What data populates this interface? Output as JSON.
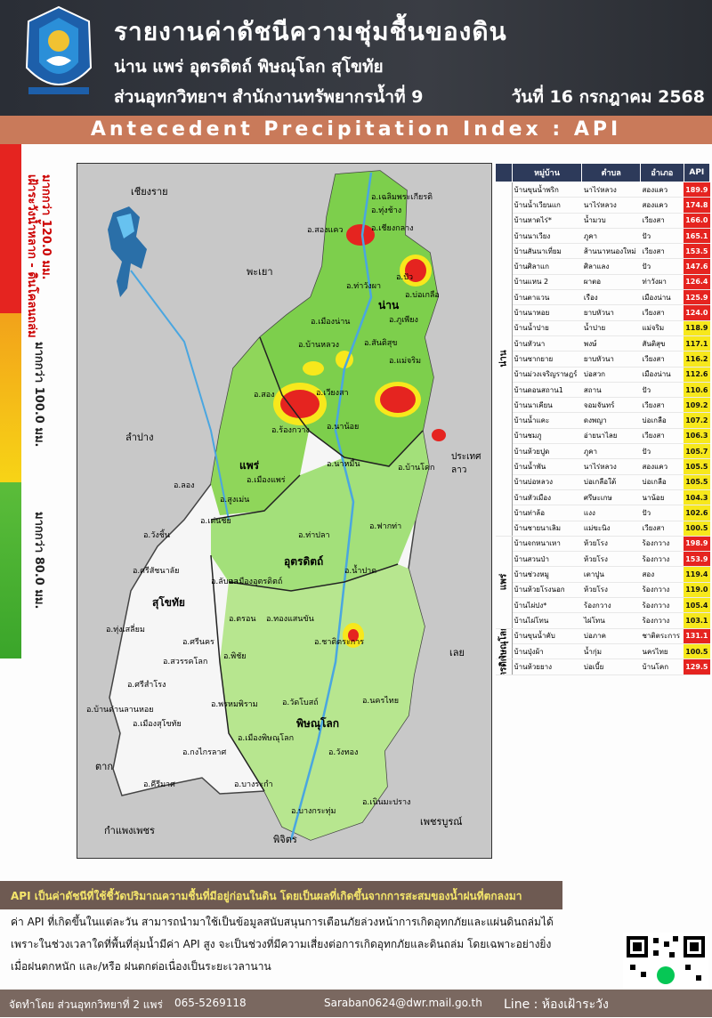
{
  "header": {
    "title": "รายงานค่าดัชนีความชุ่มชื้นของดิน",
    "provinces": "น่าน แพร่ อุตรดิตถ์ พิษณุโลก สุโขทัย",
    "office": "ส่วนอุทกวิทยาฯ สำนักงานทรัพยากรน้ำที่ 9",
    "date": "วันที่ 16 กรกฎาคม 2568"
  },
  "banner": "Antecedent Precipitation Index : API",
  "legend": {
    "levels": [
      {
        "color": "#e52420",
        "text": "มากกว่า 120.0 มม.",
        "sub": "เฝ้าระวังน้ำหลาก - ดินโคลนถล่ม"
      },
      {
        "color": "#f7d416",
        "text": "มากกว่า 100.0 มม."
      },
      {
        "color": "#5bbd3a",
        "text": "มากกว่า 80.0 มม."
      }
    ]
  },
  "map": {
    "neighbors": [
      "เชียงราย",
      "พะเยา",
      "ลำปาง",
      "ตาก",
      "กำแพงเพชร",
      "พิจิตร",
      "เพชรบูรณ์",
      "เลย",
      "ประเทศลาว"
    ],
    "provinces": [
      "น่าน",
      "แพร่",
      "อุตรดิตถ์",
      "สุโขทัย",
      "พิษณุโลก"
    ],
    "districts": [
      "อ.เฉลิมพระเกียรติ",
      "อ.ทุ่งช้าง",
      "อ.สองแคว",
      "อ.เชียงกลาง",
      "อ.ปัว",
      "อ.ท่าวังผา",
      "อ.บ่อเกลือ",
      "อ.เมืองน่าน",
      "อ.ภูเพียง",
      "อ.สันติสุข",
      "อ.บ้านหลวง",
      "อ.แม่จริม",
      "อ.เวียงสา",
      "อ.นาน้อย",
      "อ.นาหมื่น",
      "อ.บ้านโคก",
      "อ.สอง",
      "อ.ร้องกวาง",
      "อ.เมืองแพร่",
      "อ.สูงเม่น",
      "อ.ลอง",
      "อ.เด่นชัย",
      "อ.วังชิ้น",
      "อ.ฟากท่า",
      "อ.ท่าปลา",
      "อ.น้ำปาด",
      "อ.ลับแล",
      "อ.เมืองอุตรดิตถ์",
      "อ.ตรอน",
      "อ.ทองแสนขัน",
      "อ.พิชัย",
      "อ.ชาติตระการ",
      "อ.ศรีสัชนาลัย",
      "อ.ศรีนคร",
      "อ.ทุ่งเสลี่ยม",
      "อ.สวรรคโลก",
      "อ.ศรีสำโรง",
      "อ.บ้านด่านลานหอย",
      "อ.เมืองสุโขทัย",
      "อ.กงไกรลาศ",
      "อ.คีรีมาศ",
      "อ.นครไทย",
      "อ.วัดโบสถ์",
      "อ.พรหมพิราม",
      "อ.วังทอง",
      "อ.เมืองพิษณุโลก",
      "อ.บางระกำ",
      "อ.บางกระทุ่ม",
      "อ.เนินมะปราง"
    ]
  },
  "table": {
    "headers": [
      "หมู่บ้าน",
      "ตำบล",
      "อำเภอ",
      "API"
    ],
    "groups": [
      {
        "province": "น่าน",
        "rows": [
          [
            "บ้านขุนน้ำพริก",
            "นาไร่หลวง",
            "สองแคว",
            "189.9"
          ],
          [
            "บ้านน้ำเวียนแก",
            "นาไร่หลวง",
            "สองแคว",
            "174.8"
          ],
          [
            "บ้านหาดไร่*",
            "น้ำมวบ",
            "เวียงสา",
            "166.0"
          ],
          [
            "บ้านนาเวียง",
            "ภูคา",
            "ปัว",
            "165.1"
          ],
          [
            "บ้านสันนาเที่ยม",
            "ส้านนาหนองใหม่",
            "เวียงสา",
            "153.5"
          ],
          [
            "บ้านศิลาแก",
            "ศิลาแลง",
            "ปัว",
            "147.6"
          ],
          [
            "บ้านแหน 2",
            "ผาตอ",
            "ท่าวังผา",
            "126.4"
          ],
          [
            "บ้านตาแวน",
            "เรือง",
            "เมืองน่าน",
            "125.9"
          ],
          [
            "บ้านนาหอย",
            "ยาบหัวนา",
            "เวียงสา",
            "124.0"
          ],
          [
            "บ้านน้ำปาย",
            "น้ำปาย",
            "แม่จริม",
            "118.9"
          ],
          [
            "บ้านหัวนา",
            "พงษ์",
            "สันติสุข",
            "117.1"
          ],
          [
            "บ้านซากยาย",
            "ยาบหัวนา",
            "เวียงสา",
            "116.2"
          ],
          [
            "บ้านม่วงเจริญราษฎร์",
            "บ่อสวก",
            "เมืองน่าน",
            "112.6"
          ],
          [
            "บ้านดอนสถาน1",
            "สถาน",
            "ปัว",
            "110.6"
          ],
          [
            "บ้านนาเคียน",
            "จอมจันทร์",
            "เวียงสา",
            "109.2"
          ],
          [
            "บ้านน้ำแคะ",
            "ดงพญา",
            "บ่อเกลือ",
            "107.2"
          ],
          [
            "บ้านชมภู",
            "อ่ายนาไลย",
            "เวียงสา",
            "106.3"
          ],
          [
            "บ้านห้วยปูด",
            "ภูคา",
            "ปัว",
            "105.7"
          ],
          [
            "บ้านน้ำพัน",
            "นาไร่หลวง",
            "สองแคว",
            "105.5"
          ],
          [
            "บ้านบ่อหลวง",
            "บ่อเกลือใต้",
            "บ่อเกลือ",
            "105.5"
          ],
          [
            "บ้านหัวเมือง",
            "ศรีษะเกษ",
            "นาน้อย",
            "104.3"
          ],
          [
            "บ้านท่าล้อ",
            "แงง",
            "ปัว",
            "102.6"
          ],
          [
            "บ้านชายนาเลิม",
            "แม่ขะนิง",
            "เวียงสา",
            "100.5"
          ]
        ]
      },
      {
        "province": "แพร่",
        "rows": [
          [
            "บ้านจกหนาเหา",
            "ห้วยโรง",
            "ร้องกวาง",
            "198.9"
          ],
          [
            "บ้านสวนป่า",
            "ห้วยโรง",
            "ร้องกวาง",
            "153.9"
          ],
          [
            "บ้านช่วงหมู",
            "เตาปูน",
            "สอง",
            "119.4"
          ],
          [
            "บ้านห้วยโรงนอก",
            "ห้วยโรง",
            "ร้องกวาง",
            "119.0"
          ],
          [
            "บ้านไผ่ปง*",
            "ร้องกวาง",
            "ร้องกวาง",
            "105.4"
          ],
          [
            "บ้านไผ่โทน",
            "ไผ่โทน",
            "ร้องกวาง",
            "103.1"
          ]
        ]
      },
      {
        "province": "พิษณุโลก",
        "rows": [
          [
            "บ้านขุนน้ำคับ",
            "บ่อภาค",
            "ชาติตระการ",
            "131.1"
          ],
          [
            "บ้านปุ่งผ้า",
            "น้ำกุ่ม",
            "นครไทย",
            "100.5"
          ]
        ]
      },
      {
        "province": "อุตรดิตถ์",
        "rows": [
          [
            "บ้านห้วยยาง",
            "บ่อเบี้ย",
            "บ้านโคก",
            "129.5"
          ]
        ]
      }
    ]
  },
  "note": {
    "headline": "API เป็นค่าดัชนีที่ใช้ชี้วัดปริมาณความชื้นที่มีอยู่ก่อนในดิน โดยเป็นผลที่เกิดขึ้นจากการสะสมของน้ำฝนที่ตกลงมา",
    "line1": "ค่า API ที่เกิดขึ้นในแต่ละวัน สามารถนำมาใช้เป็นข้อมูลสนับสนุนการเตือนภัยล่วงหน้าการเกิดอุทกภัยและแผ่นดินถล่มได้",
    "line2": "เพราะในช่วงเวลาใดที่พื้นที่ลุ่มน้ำมีค่า API สูง จะเป็นช่วงที่มีความเสี่ยงต่อการเกิดอุทกภัยและดินถล่ม โดยเฉพาะอย่างยิ่ง",
    "line3": "เมื่อฝนตกหนัก และ/หรือ ฝนตกต่อเนื่องเป็นระยะเวลานาน"
  },
  "footer": {
    "made_by": "จัดทำโดย ส่วนอุทกวิทยาที่ 2 แพร่",
    "phone": "065-5269118",
    "email": "Saraban0624@dwr.mail.go.th",
    "line": "Line : ห้องเฝ้าระวัง"
  },
  "colors": {
    "red": "#e52420",
    "yellow": "#f7e81c",
    "green": "#5bbd3a",
    "header": "#33363d",
    "banner": "#c97a5a"
  }
}
